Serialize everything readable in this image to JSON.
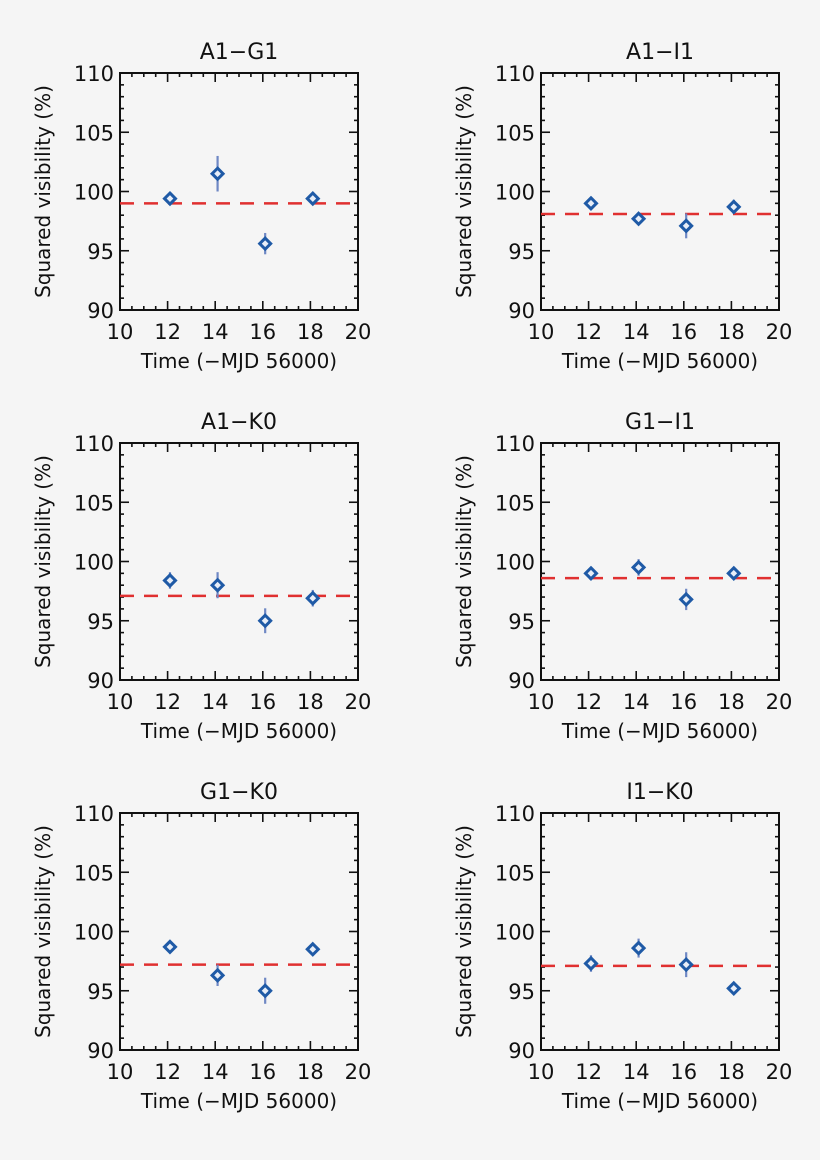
{
  "colors": {
    "background": "#f5f5f5",
    "points": "#1f5aa6",
    "errorbars": "#6f88c4",
    "mean_line": "#e03030",
    "axes": "#111111"
  },
  "chart_data": [
    {
      "type": "scatter",
      "title": "A1−G1",
      "xlabel": "Time (−MJD 56000)",
      "ylabel": "Squared visibility (%)",
      "xlim": [
        10,
        20
      ],
      "ylim": [
        90,
        110
      ],
      "xticks": [
        "10",
        "12",
        "14",
        "16",
        "18",
        "20"
      ],
      "yticks": [
        "90",
        "95",
        "100",
        "105",
        "110"
      ],
      "grid": false,
      "marker": "diamond",
      "x": [
        12.1,
        14.1,
        16.1,
        18.1
      ],
      "y": [
        99.4,
        101.5,
        95.6,
        99.4
      ],
      "yerr": [
        0.3,
        1.5,
        0.9,
        0.4
      ],
      "mean_line": 99.0
    },
    {
      "type": "scatter",
      "title": "A1−I1",
      "xlabel": "Time (−MJD 56000)",
      "ylabel": "Squared visibility (%)",
      "xlim": [
        10,
        20
      ],
      "ylim": [
        90,
        110
      ],
      "xticks": [
        "10",
        "12",
        "14",
        "16",
        "18",
        "20"
      ],
      "yticks": [
        "90",
        "95",
        "100",
        "105",
        "110"
      ],
      "grid": false,
      "marker": "diamond",
      "x": [
        12.1,
        14.1,
        16.1,
        18.1
      ],
      "y": [
        99.0,
        97.7,
        97.1,
        98.7
      ],
      "yerr": [
        0.5,
        0.3,
        1.05,
        0.6
      ],
      "mean_line": 98.1
    },
    {
      "type": "scatter",
      "title": "A1−K0",
      "xlabel": "Time (−MJD 56000)",
      "ylabel": "Squared visibility (%)",
      "xlim": [
        10,
        20
      ],
      "ylim": [
        90,
        110
      ],
      "xticks": [
        "10",
        "12",
        "14",
        "16",
        "18",
        "20"
      ],
      "yticks": [
        "90",
        "95",
        "100",
        "105",
        "110"
      ],
      "grid": false,
      "marker": "diamond",
      "x": [
        12.1,
        14.1,
        16.1,
        18.1
      ],
      "y": [
        98.4,
        98.0,
        95.0,
        96.9
      ],
      "yerr": [
        0.7,
        1.1,
        1.05,
        0.7
      ],
      "mean_line": 97.1
    },
    {
      "type": "scatter",
      "title": "G1−I1",
      "xlabel": "Time (−MJD 56000)",
      "ylabel": "Squared visibility (%)",
      "xlim": [
        10,
        20
      ],
      "ylim": [
        90,
        110
      ],
      "xticks": [
        "10",
        "12",
        "14",
        "16",
        "18",
        "20"
      ],
      "yticks": [
        "90",
        "95",
        "100",
        "105",
        "110"
      ],
      "grid": false,
      "marker": "diamond",
      "x": [
        12.1,
        14.1,
        16.1,
        18.1
      ],
      "y": [
        99.0,
        99.5,
        96.8,
        99.0
      ],
      "yerr": [
        0.3,
        0.7,
        0.9,
        0.4
      ],
      "mean_line": 98.6
    },
    {
      "type": "scatter",
      "title": "G1−K0",
      "xlabel": "Time (−MJD 56000)",
      "ylabel": "Squared visibility (%)",
      "xlim": [
        10,
        20
      ],
      "ylim": [
        90,
        110
      ],
      "xticks": [
        "10",
        "12",
        "14",
        "16",
        "18",
        "20"
      ],
      "yticks": [
        "90",
        "95",
        "100",
        "105",
        "110"
      ],
      "grid": false,
      "marker": "diamond",
      "x": [
        12.1,
        14.1,
        16.1,
        18.1
      ],
      "y": [
        98.7,
        96.3,
        95.0,
        98.5
      ],
      "yerr": [
        0.3,
        0.9,
        1.1,
        0.3
      ],
      "mean_line": 97.2
    },
    {
      "type": "scatter",
      "title": "I1−K0",
      "xlabel": "Time (−MJD 56000)",
      "ylabel": "Squared visibility (%)",
      "xlim": [
        10,
        20
      ],
      "ylim": [
        90,
        110
      ],
      "xticks": [
        "10",
        "12",
        "14",
        "16",
        "18",
        "20"
      ],
      "yticks": [
        "90",
        "95",
        "100",
        "105",
        "110"
      ],
      "grid": false,
      "marker": "diamond",
      "x": [
        12.1,
        14.1,
        16.1,
        18.1
      ],
      "y": [
        97.3,
        98.6,
        97.2,
        95.2
      ],
      "yerr": [
        0.7,
        0.8,
        1.05,
        0.5
      ],
      "mean_line": 97.1
    }
  ]
}
